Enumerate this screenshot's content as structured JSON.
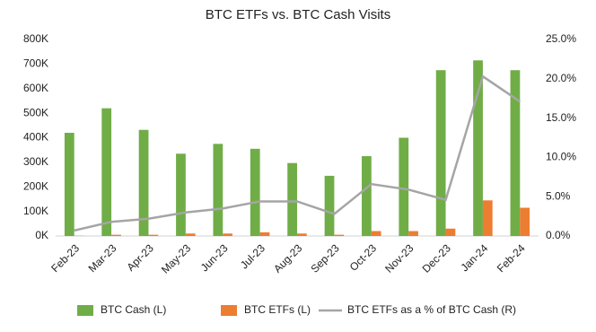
{
  "chart_data": {
    "type": "bar-line",
    "title": "BTC ETFs vs. BTC Cash Visits",
    "categories": [
      "Feb-23",
      "Mar-23",
      "Apr-23",
      "May-23",
      "Jun-23",
      "Jul-23",
      "Aug-23",
      "Sep-23",
      "Oct-23",
      "Nov-23",
      "Dec-23",
      "Jan-24",
      "Feb-24"
    ],
    "series": [
      {
        "name": "BTC Cash (L)",
        "color": "#70ad47",
        "type": "bar",
        "values": [
          420000,
          520000,
          432000,
          335000,
          375000,
          355000,
          297000,
          245000,
          325000,
          400000,
          675000,
          715000,
          675000
        ]
      },
      {
        "name": "BTC ETFs (L)",
        "color": "#ed7d31",
        "type": "bar",
        "values": [
          1000,
          5000,
          5000,
          10000,
          10000,
          15000,
          10000,
          5000,
          20000,
          20000,
          30000,
          145000,
          115000
        ]
      },
      {
        "name": "BTC ETFs as a % of BTC Cash (R)",
        "color": "#a5a5a5",
        "type": "line",
        "axis": "y2",
        "values": [
          0.7,
          1.8,
          2.2,
          3.0,
          3.5,
          4.4,
          4.4,
          2.8,
          6.6,
          5.9,
          4.6,
          20.3,
          17.1
        ]
      }
    ],
    "ylim": [
      0,
      800000
    ],
    "yticks": [
      {
        "value": 0,
        "label": "0K"
      },
      {
        "value": 100000,
        "label": "100K"
      },
      {
        "value": 200000,
        "label": "200K"
      },
      {
        "value": 300000,
        "label": "300K"
      },
      {
        "value": 400000,
        "label": "400K"
      },
      {
        "value": 500000,
        "label": "500K"
      },
      {
        "value": 600000,
        "label": "600K"
      },
      {
        "value": 700000,
        "label": "700K"
      },
      {
        "value": 800000,
        "label": "800K"
      }
    ],
    "y2lim": [
      0,
      25
    ],
    "y2ticks": [
      {
        "value": 0,
        "label": "0.0%"
      },
      {
        "value": 5,
        "label": "5.0%"
      },
      {
        "value": 10,
        "label": "10.0%"
      },
      {
        "value": 15,
        "label": "15.0%"
      },
      {
        "value": 20,
        "label": "20.0%"
      },
      {
        "value": 25,
        "label": "25.0%"
      }
    ],
    "legend": "bottom"
  }
}
